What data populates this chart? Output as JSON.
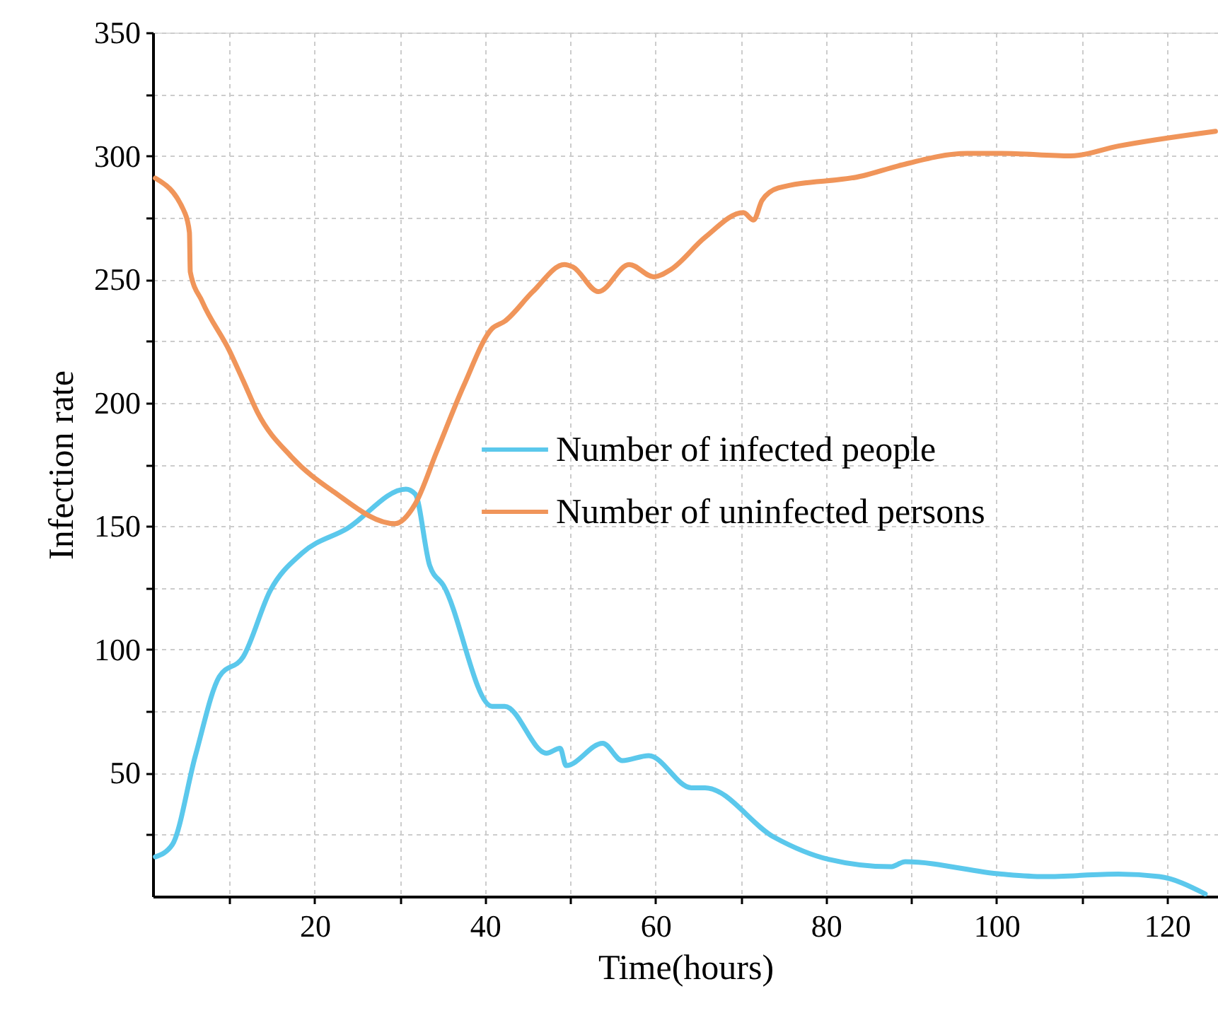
{
  "chart_data": {
    "type": "line",
    "xlabel": "Time(hours)",
    "ylabel": "Infection rate",
    "xlim": [
      1,
      126
    ],
    "ylim": [
      0,
      350
    ],
    "xticks": [
      {
        "value": 10,
        "label": null
      },
      20,
      {
        "value": 30,
        "label": null
      },
      40,
      {
        "value": 50,
        "label": null
      },
      60,
      {
        "value": 70,
        "label": null
      },
      80,
      {
        "value": 90,
        "label": null
      },
      100,
      {
        "value": 110,
        "label": null
      },
      120
    ],
    "yticks": [
      {
        "value": 25,
        "label": null
      },
      50,
      {
        "value": 75,
        "label": null
      },
      100,
      {
        "value": 125,
        "label": null
      },
      150,
      {
        "value": 175,
        "label": null
      },
      200,
      {
        "value": 225,
        "label": null
      },
      250,
      {
        "value": 275,
        "label": null
      },
      300,
      {
        "value": 325,
        "label": null
      },
      350
    ],
    "grid": true,
    "legend": "right",
    "marker": "none",
    "line_style": "solid",
    "series": [
      {
        "name": "Number of infected people",
        "color": "#5bc8ec",
        "x": [
          1.3,
          3.3,
          6,
          8.8,
          11.6,
          14.8,
          18.5,
          23.8,
          30.7,
          31.8,
          33.5,
          35.1,
          40.8,
          42.3,
          47.2,
          48.8,
          49.5,
          53.8,
          56.1,
          59.2,
          64.2,
          65.8,
          73.9,
          80.3,
          87.6,
          89.3,
          100.6,
          105.6,
          114.3,
          119.1,
          124.5
        ],
        "values": [
          16,
          21,
          57,
          89,
          97,
          124,
          139,
          149,
          165,
          163,
          134,
          126,
          77,
          77,
          58,
          60,
          53,
          62,
          55,
          57,
          44,
          44,
          24,
          15,
          12,
          14,
          9,
          8,
          9,
          8,
          1
        ]
      },
      {
        "name": "Number of uninfected persons",
        "color": "#f0955a",
        "x": [
          1.3,
          4.75,
          5.3,
          5.4,
          6.8,
          10,
          11.6,
          13.3,
          17.3,
          22.2,
          29.4,
          31.8,
          34.3,
          37.5,
          40.8,
          42.3,
          45.6,
          49.3,
          50.3,
          53.3,
          56.9,
          59.8,
          61.8,
          65.8,
          70.3,
          71.5,
          72.5,
          74.4,
          84.4,
          88.5,
          96.6,
          100.6,
          108.7,
          114.3,
          125.7
        ],
        "values": [
          291,
          277,
          269,
          253,
          241,
          221,
          209,
          196,
          178,
          164,
          151,
          159,
          180,
          207,
          230,
          233,
          245,
          256,
          255,
          245,
          256,
          251,
          254,
          267,
          277,
          274,
          282,
          287,
          292,
          296,
          301,
          301,
          300,
          304,
          310
        ]
      }
    ]
  }
}
